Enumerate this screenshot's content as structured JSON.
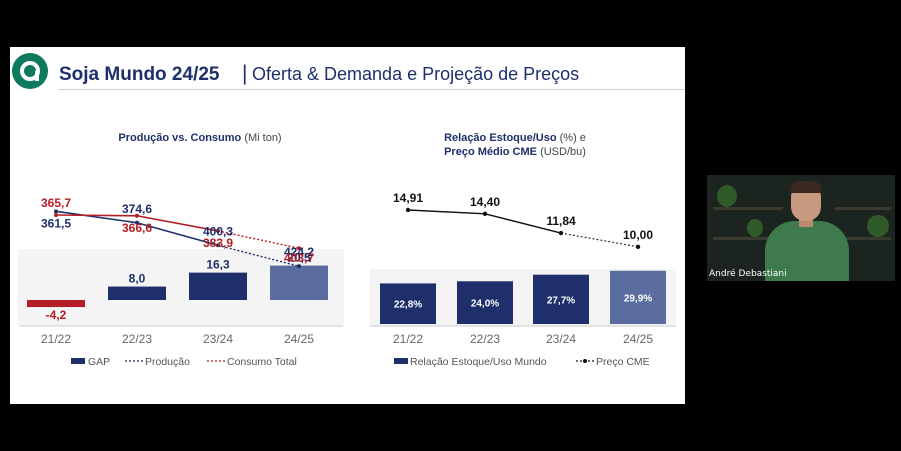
{
  "header": {
    "title_main": "Soja Mundo 24/25",
    "title_separator": "|",
    "title_sub": "Oferta & Demanda e Projeção de Preços",
    "logo_icon": "logo-icon"
  },
  "colors": {
    "navy": "#1f2f6b",
    "red": "#b51d24",
    "projection": "#5a6d9e",
    "accent_green": "#0d7a5f"
  },
  "chart_data": [
    {
      "type": "bar",
      "title": "Produção vs. Consumo",
      "title_unit": "(Mi ton)",
      "categories": [
        "21/22",
        "22/23",
        "23/24",
        "24/25"
      ],
      "series": [
        {
          "name": "GAP",
          "values": [
            -4.2,
            8.0,
            16.3,
            20.5
          ],
          "labels": [
            "-4,2",
            "8,0",
            "16,3",
            "20,5"
          ]
        },
        {
          "name": "Produção",
          "values": [
            361.5,
            374.6,
            400.3,
            424.2
          ],
          "labels": [
            "361,5",
            "374,6",
            "400,3",
            "424,2"
          ]
        },
        {
          "name": "Consumo Total",
          "values": [
            365.7,
            366.6,
            383.9,
            403.7
          ],
          "labels": [
            "365,7",
            "366,6",
            "383,9",
            "403,7"
          ]
        }
      ],
      "legend": [
        "GAP",
        "Produção",
        "Consumo Total"
      ],
      "legend_position": "bottom"
    },
    {
      "type": "bar",
      "title_line1": "Relação Estoque/Uso",
      "title_line1_unit": "(%) e",
      "title_line2": "Preço Médio CME",
      "title_line2_unit": "(USD/bu)",
      "categories": [
        "21/22",
        "22/23",
        "23/24",
        "24/25"
      ],
      "series": [
        {
          "name": "Relação Estoque/Uso Mundo",
          "values": [
            22.8,
            24.0,
            27.7,
            29.9
          ],
          "labels": [
            "22,8%",
            "24,0%",
            "27,7%",
            "29,9%"
          ]
        },
        {
          "name": "Preço CME",
          "values": [
            14.91,
            14.4,
            11.84,
            10.0
          ],
          "labels": [
            "14,91",
            "14,40",
            "11,84",
            "10,00"
          ]
        }
      ],
      "legend": [
        "Relação Estoque/Uso Mundo",
        "Preço CME"
      ],
      "legend_position": "bottom"
    }
  ],
  "webcam": {
    "participant_name": "André Debastiani"
  }
}
